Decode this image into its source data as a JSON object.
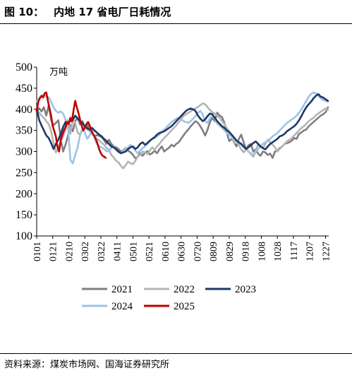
{
  "figure": {
    "label": "图 10：",
    "title": "内地 17 省电厂日耗情况",
    "source": "资料来源：煤炭市场网、国海证券研究所"
  },
  "chart_data": {
    "type": "line",
    "title": "内地 17 省电厂日耗情况",
    "unit_label": "万吨",
    "ylim": [
      100,
      500
    ],
    "yticks": [
      100,
      150,
      200,
      250,
      300,
      350,
      400,
      450,
      500
    ],
    "x_day_range": [
      1,
      365
    ],
    "xticks": [
      "0101",
      "0121",
      "0210",
      "0302",
      "0322",
      "0411",
      "0501",
      "0521",
      "0610",
      "0630",
      "0720",
      "0809",
      "0829",
      "0918",
      "1008",
      "1028",
      "1117",
      "1207",
      "1227"
    ],
    "grid": false,
    "legend_position": "bottom",
    "series": [
      {
        "name": "2021",
        "color": "#7f7f7f",
        "x": [
          "0101",
          "0104",
          "0107",
          "0110",
          "0113",
          "0116",
          "0119",
          "0122",
          "0125",
          "0128",
          "0131",
          "0203",
          "0206",
          "0209",
          "0212",
          "0215",
          "0218",
          "0221",
          "0224",
          "0227",
          "0302",
          "0305",
          "0308",
          "0311",
          "0314",
          "0317",
          "0320",
          "0323",
          "0326",
          "0329",
          "0401",
          "0404",
          "0407",
          "0410",
          "0413",
          "0416",
          "0419",
          "0422",
          "0425",
          "0428",
          "0501",
          "0504",
          "0507",
          "0510",
          "0513",
          "0516",
          "0519",
          "0522",
          "0525",
          "0528",
          "0531",
          "0603",
          "0606",
          "0609",
          "0612",
          "0615",
          "0618",
          "0621",
          "0624",
          "0627",
          "0630",
          "0703",
          "0706",
          "0709",
          "0712",
          "0715",
          "0718",
          "0721",
          "0724",
          "0727",
          "0730",
          "0802",
          "0805",
          "0808",
          "0811",
          "0814",
          "0817",
          "0820",
          "0823",
          "0826",
          "0829",
          "0901",
          "0904",
          "0907",
          "0910",
          "0913",
          "0916",
          "0919",
          "0922",
          "0925",
          "0928",
          "1001",
          "1004",
          "1007",
          "1010",
          "1013",
          "1016",
          "1019",
          "1022",
          "1025",
          "1028",
          "1031",
          "1103",
          "1106",
          "1109",
          "1112",
          "1115",
          "1118",
          "1121",
          "1124",
          "1127",
          "1130",
          "1203",
          "1206",
          "1209",
          "1212",
          "1215",
          "1218",
          "1221",
          "1224",
          "1227",
          "1230"
        ],
        "y": [
          392,
          403,
          395,
          405,
          385,
          410,
          375,
          362,
          368,
          374,
          330,
          300,
          316,
          338,
          362,
          348,
          372,
          380,
          364,
          372,
          356,
          363,
          352,
          342,
          337,
          339,
          337,
          334,
          327,
          318,
          328,
          318,
          312,
          310,
          306,
          300,
          303,
          308,
          302,
          298,
          292,
          284,
          288,
          296,
          290,
          297,
          301,
          293,
          296,
          302,
          296,
          305,
          312,
          300,
          305,
          309,
          316,
          312,
          318,
          322,
          330,
          338,
          346,
          352,
          360,
          366,
          372,
          368,
          360,
          350,
          338,
          352,
          370,
          380,
          372,
          392,
          385,
          382,
          368,
          345,
          325,
          330,
          322,
          312,
          330,
          340,
          322,
          305,
          315,
          318,
          300,
          305,
          295,
          290,
          300,
          298,
          292,
          295,
          285,
          300,
          302,
          308,
          312,
          318,
          320,
          322,
          326,
          332,
          330,
          342,
          345,
          350,
          352,
          360,
          365,
          370,
          375,
          380,
          385,
          388,
          393,
          405
        ]
      },
      {
        "name": "2022",
        "color": "#b4b4b4",
        "x": [
          "0101",
          "0104",
          "0107",
          "0110",
          "0113",
          "0116",
          "0119",
          "0122",
          "0125",
          "0128",
          "0131",
          "0203",
          "0206",
          "0209",
          "0212",
          "0215",
          "0218",
          "0221",
          "0224",
          "0227",
          "0302",
          "0305",
          "0308",
          "0311",
          "0314",
          "0317",
          "0320",
          "0323",
          "0326",
          "0329",
          "0401",
          "0404",
          "0407",
          "0410",
          "0413",
          "0416",
          "0419",
          "0422",
          "0425",
          "0428",
          "0501",
          "0504",
          "0507",
          "0510",
          "0513",
          "0516",
          "0519",
          "0522",
          "0525",
          "0528",
          "0531",
          "0603",
          "0606",
          "0609",
          "0612",
          "0615",
          "0618",
          "0621",
          "0624",
          "0627",
          "0630",
          "0703",
          "0706",
          "0709",
          "0712",
          "0715",
          "0718",
          "0721",
          "0724",
          "0727",
          "0730",
          "0802",
          "0805",
          "0808",
          "0811",
          "0814",
          "0817",
          "0820",
          "0823",
          "0826",
          "0829",
          "0901",
          "0904",
          "0907",
          "0910",
          "0913",
          "0916",
          "0919",
          "0922",
          "0925",
          "0928",
          "1001",
          "1004",
          "1007",
          "1010",
          "1013",
          "1016",
          "1019",
          "1022",
          "1025",
          "1028",
          "1031",
          "1103",
          "1106",
          "1109",
          "1112",
          "1115",
          "1118",
          "1121",
          "1124",
          "1127",
          "1130",
          "1203",
          "1206",
          "1209",
          "1212",
          "1215",
          "1218",
          "1221",
          "1224",
          "1227",
          "1230"
        ],
        "y": [
          398,
          392,
          385,
          380,
          372,
          365,
          348,
          320,
          298,
          308,
          322,
          336,
          352,
          375,
          342,
          376,
          368,
          345,
          340,
          350,
          362,
          352,
          348,
          343,
          336,
          330,
          326,
          321,
          316,
          308,
          304,
          292,
          286,
          278,
          274,
          266,
          260,
          268,
          276,
          272,
          270,
          278,
          288,
          292,
          300,
          298,
          294,
          302,
          310,
          304,
          312,
          318,
          326,
          332,
          338,
          344,
          350,
          356,
          362,
          370,
          376,
          384,
          388,
          392,
          395,
          400,
          402,
          406,
          410,
          414,
          412,
          405,
          398,
          393,
          390,
          385,
          380,
          372,
          365,
          355,
          348,
          335,
          320,
          328,
          315,
          305,
          298,
          306,
          300,
          294,
          288,
          300,
          318,
          312,
          308,
          318,
          328,
          322,
          316,
          310,
          300,
          306,
          312,
          318,
          324,
          328,
          332,
          338,
          344,
          350,
          356,
          360,
          366,
          372,
          376,
          380,
          386,
          390,
          394,
          398,
          402,
          398
        ]
      },
      {
        "name": "2023",
        "color": "#1f3864",
        "x": [
          "0101",
          "0104",
          "0107",
          "0110",
          "0113",
          "0116",
          "0119",
          "0122",
          "0125",
          "0128",
          "0131",
          "0203",
          "0206",
          "0209",
          "0212",
          "0215",
          "0218",
          "0221",
          "0224",
          "0227",
          "0302",
          "0305",
          "0308",
          "0311",
          "0314",
          "0317",
          "0320",
          "0323",
          "0326",
          "0329",
          "0401",
          "0404",
          "0407",
          "0410",
          "0413",
          "0416",
          "0419",
          "0422",
          "0425",
          "0428",
          "0501",
          "0504",
          "0507",
          "0510",
          "0513",
          "0516",
          "0519",
          "0522",
          "0525",
          "0528",
          "0531",
          "0603",
          "0606",
          "0609",
          "0612",
          "0615",
          "0618",
          "0621",
          "0624",
          "0627",
          "0630",
          "0703",
          "0706",
          "0709",
          "0712",
          "0715",
          "0718",
          "0721",
          "0724",
          "0727",
          "0730",
          "0802",
          "0805",
          "0808",
          "0811",
          "0814",
          "0817",
          "0820",
          "0823",
          "0826",
          "0829",
          "0901",
          "0904",
          "0907",
          "0910",
          "0913",
          "0916",
          "0919",
          "0922",
          "0925",
          "0928",
          "1001",
          "1004",
          "1007",
          "1010",
          "1013",
          "1016",
          "1019",
          "1022",
          "1025",
          "1028",
          "1031",
          "1103",
          "1106",
          "1109",
          "1112",
          "1115",
          "1118",
          "1121",
          "1124",
          "1127",
          "1130",
          "1203",
          "1206",
          "1209",
          "1212",
          "1215",
          "1218",
          "1221",
          "1224",
          "1227",
          "1230"
        ],
        "y": [
          402,
          375,
          362,
          350,
          338,
          332,
          320,
          306,
          318,
          328,
          342,
          358,
          370,
          368,
          372,
          375,
          385,
          378,
          372,
          368,
          360,
          355,
          352,
          356,
          350,
          345,
          340,
          336,
          330,
          325,
          318,
          312,
          310,
          305,
          300,
          296,
          298,
          300,
          306,
          310,
          312,
          306,
          310,
          318,
          322,
          316,
          320,
          326,
          330,
          334,
          340,
          344,
          346,
          348,
          352,
          356,
          360,
          366,
          372,
          378,
          384,
          390,
          396,
          400,
          402,
          400,
          396,
          385,
          378,
          372,
          376,
          384,
          390,
          388,
          380,
          372,
          366,
          360,
          356,
          350,
          346,
          340,
          333,
          326,
          322,
          318,
          312,
          306,
          310,
          315,
          320,
          324,
          318,
          312,
          308,
          305,
          312,
          318,
          322,
          326,
          330,
          336,
          338,
          342,
          348,
          352,
          356,
          360,
          366,
          374,
          384,
          395,
          405,
          412,
          418,
          426,
          432,
          436,
          430,
          428,
          424,
          420
        ]
      },
      {
        "name": "2024",
        "color": "#9dc3e6",
        "x": [
          "0101",
          "0104",
          "0107",
          "0110",
          "0113",
          "0116",
          "0119",
          "0122",
          "0125",
          "0128",
          "0131",
          "0203",
          "0206",
          "0209",
          "0212",
          "0215",
          "0218",
          "0221",
          "0224",
          "0227",
          "0302",
          "0305",
          "0308",
          "0311",
          "0314",
          "0317",
          "0320",
          "0323",
          "0326",
          "0329",
          "0401",
          "0404",
          "0407",
          "0410",
          "0413",
          "0416",
          "0419",
          "0422",
          "0425",
          "0428",
          "0501",
          "0504",
          "0507",
          "0510",
          "0513",
          "0516",
          "0519",
          "0522",
          "0525",
          "0528",
          "0531",
          "0603",
          "0606",
          "0609",
          "0612",
          "0615",
          "0618",
          "0621",
          "0624",
          "0627",
          "0630",
          "0703",
          "0706",
          "0709",
          "0712",
          "0715",
          "0718",
          "0721",
          "0724",
          "0727",
          "0730",
          "0802",
          "0805",
          "0808",
          "0811",
          "0814",
          "0817",
          "0820",
          "0823",
          "0826",
          "0829",
          "0901",
          "0904",
          "0907",
          "0910",
          "0913",
          "0916",
          "0919",
          "0922",
          "0925",
          "0928",
          "1001",
          "1004",
          "1007",
          "1010",
          "1013",
          "1016",
          "1019",
          "1022",
          "1025",
          "1028",
          "1031",
          "1103",
          "1106",
          "1109",
          "1112",
          "1115",
          "1118",
          "1121",
          "1124",
          "1127",
          "1130",
          "1203",
          "1206",
          "1209",
          "1212",
          "1215",
          "1218",
          "1221",
          "1224",
          "1227",
          "1230"
        ],
        "y": [
          418,
          426,
          432,
          435,
          430,
          428,
          418,
          405,
          396,
          392,
          395,
          390,
          375,
          360,
          280,
          272,
          292,
          310,
          338,
          355,
          345,
          330,
          338,
          352,
          332,
          318,
          312,
          310,
          306,
          300,
          302,
          308,
          312,
          304,
          298,
          296,
          302,
          306,
          310,
          316,
          310,
          302,
          296,
          302,
          308,
          312,
          318,
          324,
          330,
          332,
          336,
          340,
          346,
          352,
          358,
          364,
          370,
          374,
          378,
          380,
          376,
          372,
          370,
          368,
          372,
          378,
          384,
          392,
          396,
          388,
          372,
          368,
          380,
          384,
          378,
          366,
          362,
          356,
          350,
          344,
          340,
          335,
          330,
          326,
          320,
          316,
          310,
          305,
          300,
          296,
          292,
          300,
          306,
          312,
          318,
          322,
          326,
          330,
          336,
          340,
          344,
          350,
          356,
          362,
          368,
          372,
          376,
          380,
          385,
          392,
          400,
          410,
          420,
          430,
          436,
          440,
          438,
          432,
          426,
          422,
          420,
          418
        ]
      },
      {
        "name": "2025",
        "color": "#c00000",
        "x": [
          "0101",
          "0103",
          "0105",
          "0107",
          "0109",
          "0111",
          "0113",
          "0115",
          "0117",
          "0119",
          "0121",
          "0123",
          "0125",
          "0127",
          "0129",
          "0131",
          "0202",
          "0204",
          "0206",
          "0208",
          "0210",
          "0212",
          "0214",
          "0216",
          "0218",
          "0220",
          "0222",
          "0224",
          "0226",
          "0228",
          "0302",
          "0304",
          "0306",
          "0308",
          "0310",
          "0312",
          "0314",
          "0316",
          "0318",
          "0320",
          "0322",
          "0324",
          "0326",
          "0328"
        ],
        "y": [
          395,
          418,
          426,
          432,
          428,
          438,
          440,
          420,
          402,
          385,
          360,
          348,
          335,
          310,
          300,
          328,
          340,
          350,
          358,
          370,
          365,
          380,
          372,
          398,
          420,
          405,
          392,
          376,
          362,
          350,
          356,
          365,
          370,
          362,
          350,
          342,
          336,
          328,
          318,
          305,
          296,
          290,
          288,
          285
        ]
      }
    ]
  }
}
